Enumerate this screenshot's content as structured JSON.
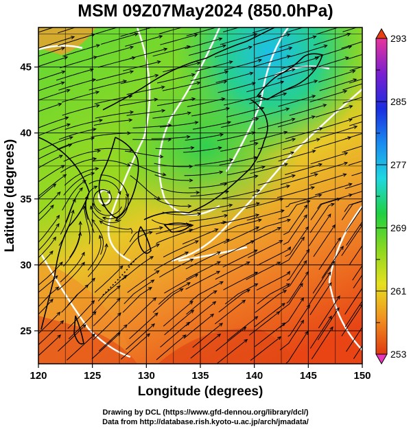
{
  "title": "MSM 09Z07May2024 (850.0hPa)",
  "axes": {
    "xlabel": "Longitude (degrees)",
    "ylabel": "Latitude  (degrees)",
    "xlim": [
      120,
      150
    ],
    "ylim": [
      22.5,
      48
    ],
    "xticks": [
      "120",
      "125",
      "130",
      "135",
      "140",
      "145",
      "150"
    ],
    "yticks": [
      "25",
      "30",
      "35",
      "40",
      "45"
    ]
  },
  "colorbar": {
    "range": [
      253,
      293
    ],
    "labels": [
      "293",
      "285",
      "277",
      "269",
      "261",
      "253"
    ],
    "colors": [
      "#e8369a",
      "#7a1fd0",
      "#1a2de0",
      "#1a8cf0",
      "#20d8e0",
      "#20d040",
      "#8ad820",
      "#e6e020",
      "#f09020",
      "#e03a10"
    ]
  },
  "field": {
    "variable_colors": {
      "cold": "#20c8e8",
      "cool": "#30d060",
      "mild": "#a8d820",
      "warm": "#f0a030",
      "hot": "#e84010"
    },
    "contour_color": "#ffffff",
    "streamline_color": "#000000",
    "coastline_color": "#000000"
  },
  "credits": {
    "line1": "Drawing by DCL (https://www.gfd-dennou.org/library/dcl/)",
    "line2": "Data from http://database.rish.kyoto-u.ac.jp/arch/jmadata/"
  }
}
